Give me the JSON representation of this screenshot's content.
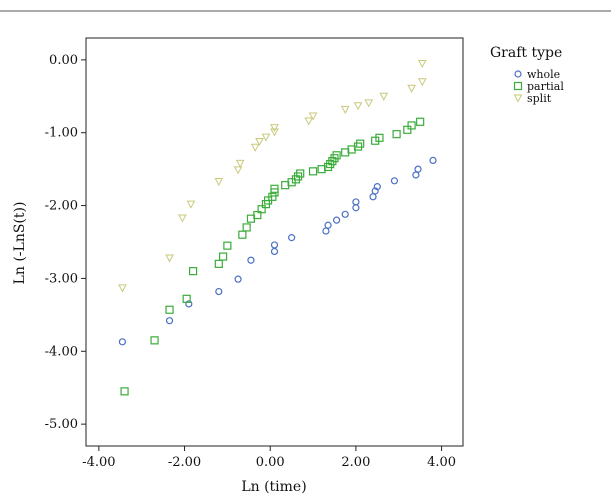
{
  "chart_data": {
    "type": "scatter",
    "title": "",
    "xlabel": "Ln (time)",
    "ylabel": "Ln (-LnS(t))",
    "xlim": [
      -4.3,
      4.5
    ],
    "ylim": [
      -5.3,
      0.3
    ],
    "x_ticks": [
      "-4.00",
      "-2.00",
      "0.00",
      "2.00",
      "4.00"
    ],
    "y_ticks": [
      "0.00",
      "-1.00",
      "-2.00",
      "-3.00",
      "-4.00",
      "-5.00"
    ],
    "x_tick_values": [
      -4,
      -2,
      0,
      2,
      4
    ],
    "y_tick_values": [
      0,
      -1,
      -2,
      -3,
      -4,
      -5
    ],
    "grid": false,
    "legend": {
      "title": "Graft type",
      "position": "right"
    },
    "series": [
      {
        "name": "whole",
        "marker": "circle",
        "color": "#4a6fc4",
        "points": [
          [
            -3.45,
            -3.87
          ],
          [
            -2.35,
            -3.58
          ],
          [
            -1.9,
            -3.35
          ],
          [
            -1.2,
            -3.18
          ],
          [
            -0.75,
            -3.01
          ],
          [
            -0.45,
            -2.75
          ],
          [
            0.1,
            -2.63
          ],
          [
            0.1,
            -2.54
          ],
          [
            0.5,
            -2.44
          ],
          [
            1.3,
            -2.35
          ],
          [
            1.35,
            -2.27
          ],
          [
            1.55,
            -2.2
          ],
          [
            1.75,
            -2.12
          ],
          [
            2.0,
            -2.03
          ],
          [
            2.0,
            -1.95
          ],
          [
            2.4,
            -1.88
          ],
          [
            2.45,
            -1.8
          ],
          [
            2.5,
            -1.74
          ],
          [
            2.9,
            -1.66
          ],
          [
            3.4,
            -1.58
          ],
          [
            3.45,
            -1.5
          ],
          [
            3.8,
            -1.38
          ]
        ]
      },
      {
        "name": "partial",
        "marker": "square",
        "color": "#3aac3a",
        "points": [
          [
            -3.4,
            -4.55
          ],
          [
            -2.7,
            -3.85
          ],
          [
            -2.35,
            -3.43
          ],
          [
            -1.95,
            -3.28
          ],
          [
            -1.8,
            -2.9
          ],
          [
            -1.2,
            -2.8
          ],
          [
            -1.1,
            -2.7
          ],
          [
            -1.0,
            -2.55
          ],
          [
            -0.65,
            -2.4
          ],
          [
            -0.55,
            -2.3
          ],
          [
            -0.45,
            -2.18
          ],
          [
            -0.3,
            -2.13
          ],
          [
            -0.2,
            -2.05
          ],
          [
            -0.1,
            -1.98
          ],
          [
            -0.05,
            -1.93
          ],
          [
            0.05,
            -1.88
          ],
          [
            0.1,
            -1.82
          ],
          [
            0.1,
            -1.77
          ],
          [
            0.35,
            -1.72
          ],
          [
            0.5,
            -1.68
          ],
          [
            0.6,
            -1.64
          ],
          [
            0.65,
            -1.6
          ],
          [
            0.7,
            -1.56
          ],
          [
            1.0,
            -1.53
          ],
          [
            1.2,
            -1.5
          ],
          [
            1.35,
            -1.47
          ],
          [
            1.4,
            -1.43
          ],
          [
            1.45,
            -1.39
          ],
          [
            1.5,
            -1.35
          ],
          [
            1.55,
            -1.31
          ],
          [
            1.75,
            -1.27
          ],
          [
            1.9,
            -1.23
          ],
          [
            2.05,
            -1.19
          ],
          [
            2.1,
            -1.15
          ],
          [
            2.45,
            -1.11
          ],
          [
            2.55,
            -1.07
          ],
          [
            2.95,
            -1.02
          ],
          [
            3.2,
            -0.96
          ],
          [
            3.3,
            -0.9
          ],
          [
            3.5,
            -0.85
          ]
        ]
      },
      {
        "name": "split",
        "marker": "triangle-down",
        "color": "#c9c97a",
        "points": [
          [
            -3.45,
            -3.13
          ],
          [
            -2.35,
            -2.72
          ],
          [
            -2.05,
            -2.17
          ],
          [
            -1.85,
            -1.98
          ],
          [
            -1.2,
            -1.67
          ],
          [
            -0.75,
            -1.51
          ],
          [
            -0.7,
            -1.42
          ],
          [
            -0.35,
            -1.2
          ],
          [
            -0.25,
            -1.12
          ],
          [
            -0.1,
            -1.06
          ],
          [
            0.1,
            -0.99
          ],
          [
            0.1,
            -0.93
          ],
          [
            0.9,
            -0.84
          ],
          [
            1.0,
            -0.77
          ],
          [
            1.75,
            -0.68
          ],
          [
            2.05,
            -0.63
          ],
          [
            2.3,
            -0.59
          ],
          [
            2.65,
            -0.5
          ],
          [
            3.3,
            -0.39
          ],
          [
            3.55,
            -0.3
          ],
          [
            3.55,
            -0.05
          ]
        ]
      }
    ]
  }
}
